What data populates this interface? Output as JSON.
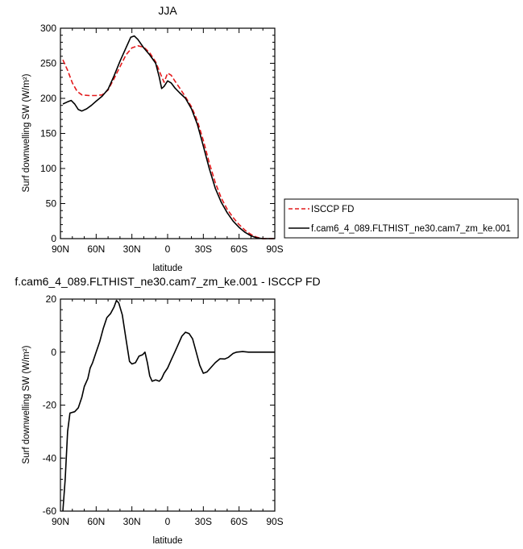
{
  "chart_data": [
    {
      "type": "line",
      "title": "JJA",
      "xlabel": "latitude",
      "ylabel": "Surf downwelling SW (W/m²)",
      "xlim": [
        90,
        -90
      ],
      "ylim": [
        0,
        300
      ],
      "x_ticks": [
        90,
        60,
        30,
        0,
        -30,
        -60,
        -90
      ],
      "x_tick_labels": [
        "90N",
        "60N",
        "30N",
        "0",
        "30S",
        "60S",
        "90S"
      ],
      "y_ticks": [
        0,
        50,
        100,
        150,
        200,
        250,
        300
      ],
      "y_tick_labels": [
        "0",
        "50",
        "100",
        "150",
        "200",
        "250",
        "300"
      ],
      "legend_position": "right",
      "series": [
        {
          "name": "ISCCP FD",
          "color": "#e31a1c",
          "dash": "dashed",
          "points": [
            [
              88,
              255
            ],
            [
              84,
              240
            ],
            [
              80,
              222
            ],
            [
              76,
              210
            ],
            [
              72,
              205
            ],
            [
              66,
              204
            ],
            [
              60,
              204
            ],
            [
              55,
              205
            ],
            [
              50,
              212
            ],
            [
              45,
              228
            ],
            [
              40,
              245
            ],
            [
              35,
              262
            ],
            [
              30,
              272
            ],
            [
              25,
              275
            ],
            [
              20,
              273
            ],
            [
              15,
              265
            ],
            [
              10,
              252
            ],
            [
              6,
              235
            ],
            [
              3,
              223
            ],
            [
              0,
              236
            ],
            [
              -3,
              233
            ],
            [
              -6,
              225
            ],
            [
              -10,
              215
            ],
            [
              -15,
              202
            ],
            [
              -20,
              188
            ],
            [
              -25,
              168
            ],
            [
              -30,
              140
            ],
            [
              -35,
              108
            ],
            [
              -40,
              80
            ],
            [
              -45,
              58
            ],
            [
              -50,
              42
            ],
            [
              -55,
              30
            ],
            [
              -60,
              20
            ],
            [
              -65,
              12
            ],
            [
              -70,
              6
            ],
            [
              -75,
              2
            ],
            [
              -80,
              0
            ],
            [
              -85,
              0
            ],
            [
              -90,
              0
            ]
          ]
        },
        {
          "name": "f.cam6_4_089.FLTHIST_ne30.cam7_zm_ke.001",
          "color": "#000000",
          "dash": "solid",
          "points": [
            [
              88,
              192
            ],
            [
              84,
              195
            ],
            [
              81,
              197
            ],
            [
              78,
              192
            ],
            [
              75,
              184
            ],
            [
              72,
              182
            ],
            [
              68,
              185
            ],
            [
              64,
              190
            ],
            [
              60,
              196
            ],
            [
              55,
              203
            ],
            [
              50,
              213
            ],
            [
              45,
              232
            ],
            [
              40,
              253
            ],
            [
              35,
              272
            ],
            [
              31,
              287
            ],
            [
              28,
              289
            ],
            [
              25,
              284
            ],
            [
              20,
              272
            ],
            [
              15,
              262
            ],
            [
              10,
              250
            ],
            [
              7,
              230
            ],
            [
              5,
              214
            ],
            [
              3,
              217
            ],
            [
              0,
              225
            ],
            [
              -3,
              222
            ],
            [
              -6,
              215
            ],
            [
              -10,
              208
            ],
            [
              -15,
              200
            ],
            [
              -20,
              185
            ],
            [
              -25,
              163
            ],
            [
              -30,
              132
            ],
            [
              -35,
              100
            ],
            [
              -40,
              72
            ],
            [
              -45,
              52
            ],
            [
              -50,
              37
            ],
            [
              -55,
              25
            ],
            [
              -60,
              16
            ],
            [
              -65,
              9
            ],
            [
              -70,
              4
            ],
            [
              -75,
              1
            ],
            [
              -80,
              0
            ],
            [
              -85,
              0
            ],
            [
              -90,
              0
            ]
          ]
        }
      ]
    },
    {
      "type": "line",
      "title": "f.cam6_4_089.FLTHIST_ne30.cam7_zm_ke.001 - ISCCP FD",
      "xlabel": "latitude",
      "ylabel": "Surf downwelling SW (W/m²)",
      "xlim": [
        90,
        -90
      ],
      "ylim": [
        -60,
        20
      ],
      "x_ticks": [
        90,
        60,
        30,
        0,
        -30,
        -60,
        -90
      ],
      "x_tick_labels": [
        "90N",
        "60N",
        "30N",
        "0",
        "30S",
        "60S",
        "90S"
      ],
      "y_ticks": [
        -60,
        -40,
        -20,
        0,
        20
      ],
      "y_tick_labels": [
        "-60",
        "-40",
        "-20",
        "0",
        "20"
      ],
      "series": [
        {
          "color": "#000000",
          "dash": "solid",
          "points": [
            [
              88,
              -60
            ],
            [
              86,
              -48
            ],
            [
              84,
              -30
            ],
            [
              82,
              -23
            ],
            [
              78,
              -22.5
            ],
            [
              75,
              -21
            ],
            [
              72,
              -17
            ],
            [
              70,
              -13
            ],
            [
              67,
              -10
            ],
            [
              65,
              -6
            ],
            [
              63,
              -4
            ],
            [
              60,
              0
            ],
            [
              57,
              4
            ],
            [
              54,
              9
            ],
            [
              51,
              13
            ],
            [
              48,
              14.5
            ],
            [
              45,
              17
            ],
            [
              43,
              19.5
            ],
            [
              41,
              18.5
            ],
            [
              38,
              14
            ],
            [
              35,
              5
            ],
            [
              32,
              -3.5
            ],
            [
              30,
              -4.5
            ],
            [
              27,
              -4
            ],
            [
              24,
              -1.5
            ],
            [
              21,
              -1
            ],
            [
              19,
              0
            ],
            [
              17,
              -4
            ],
            [
              15,
              -9
            ],
            [
              13,
              -11
            ],
            [
              10,
              -10.5
            ],
            [
              7,
              -11
            ],
            [
              5,
              -10
            ],
            [
              3,
              -8
            ],
            [
              0,
              -6
            ],
            [
              -3,
              -3
            ],
            [
              -6,
              0
            ],
            [
              -9,
              3
            ],
            [
              -12,
              6
            ],
            [
              -15,
              7.5
            ],
            [
              -18,
              7
            ],
            [
              -21,
              5
            ],
            [
              -24,
              0
            ],
            [
              -27,
              -5
            ],
            [
              -30,
              -8
            ],
            [
              -33,
              -7.5
            ],
            [
              -36,
              -6
            ],
            [
              -40,
              -4
            ],
            [
              -44,
              -2.5
            ],
            [
              -48,
              -2.6
            ],
            [
              -51,
              -2
            ],
            [
              -55,
              -0.5
            ],
            [
              -58,
              0
            ],
            [
              -63,
              0.2
            ],
            [
              -68,
              0
            ],
            [
              -75,
              0
            ],
            [
              -80,
              0
            ],
            [
              -85,
              0
            ],
            [
              -90,
              0
            ]
          ]
        }
      ]
    }
  ]
}
